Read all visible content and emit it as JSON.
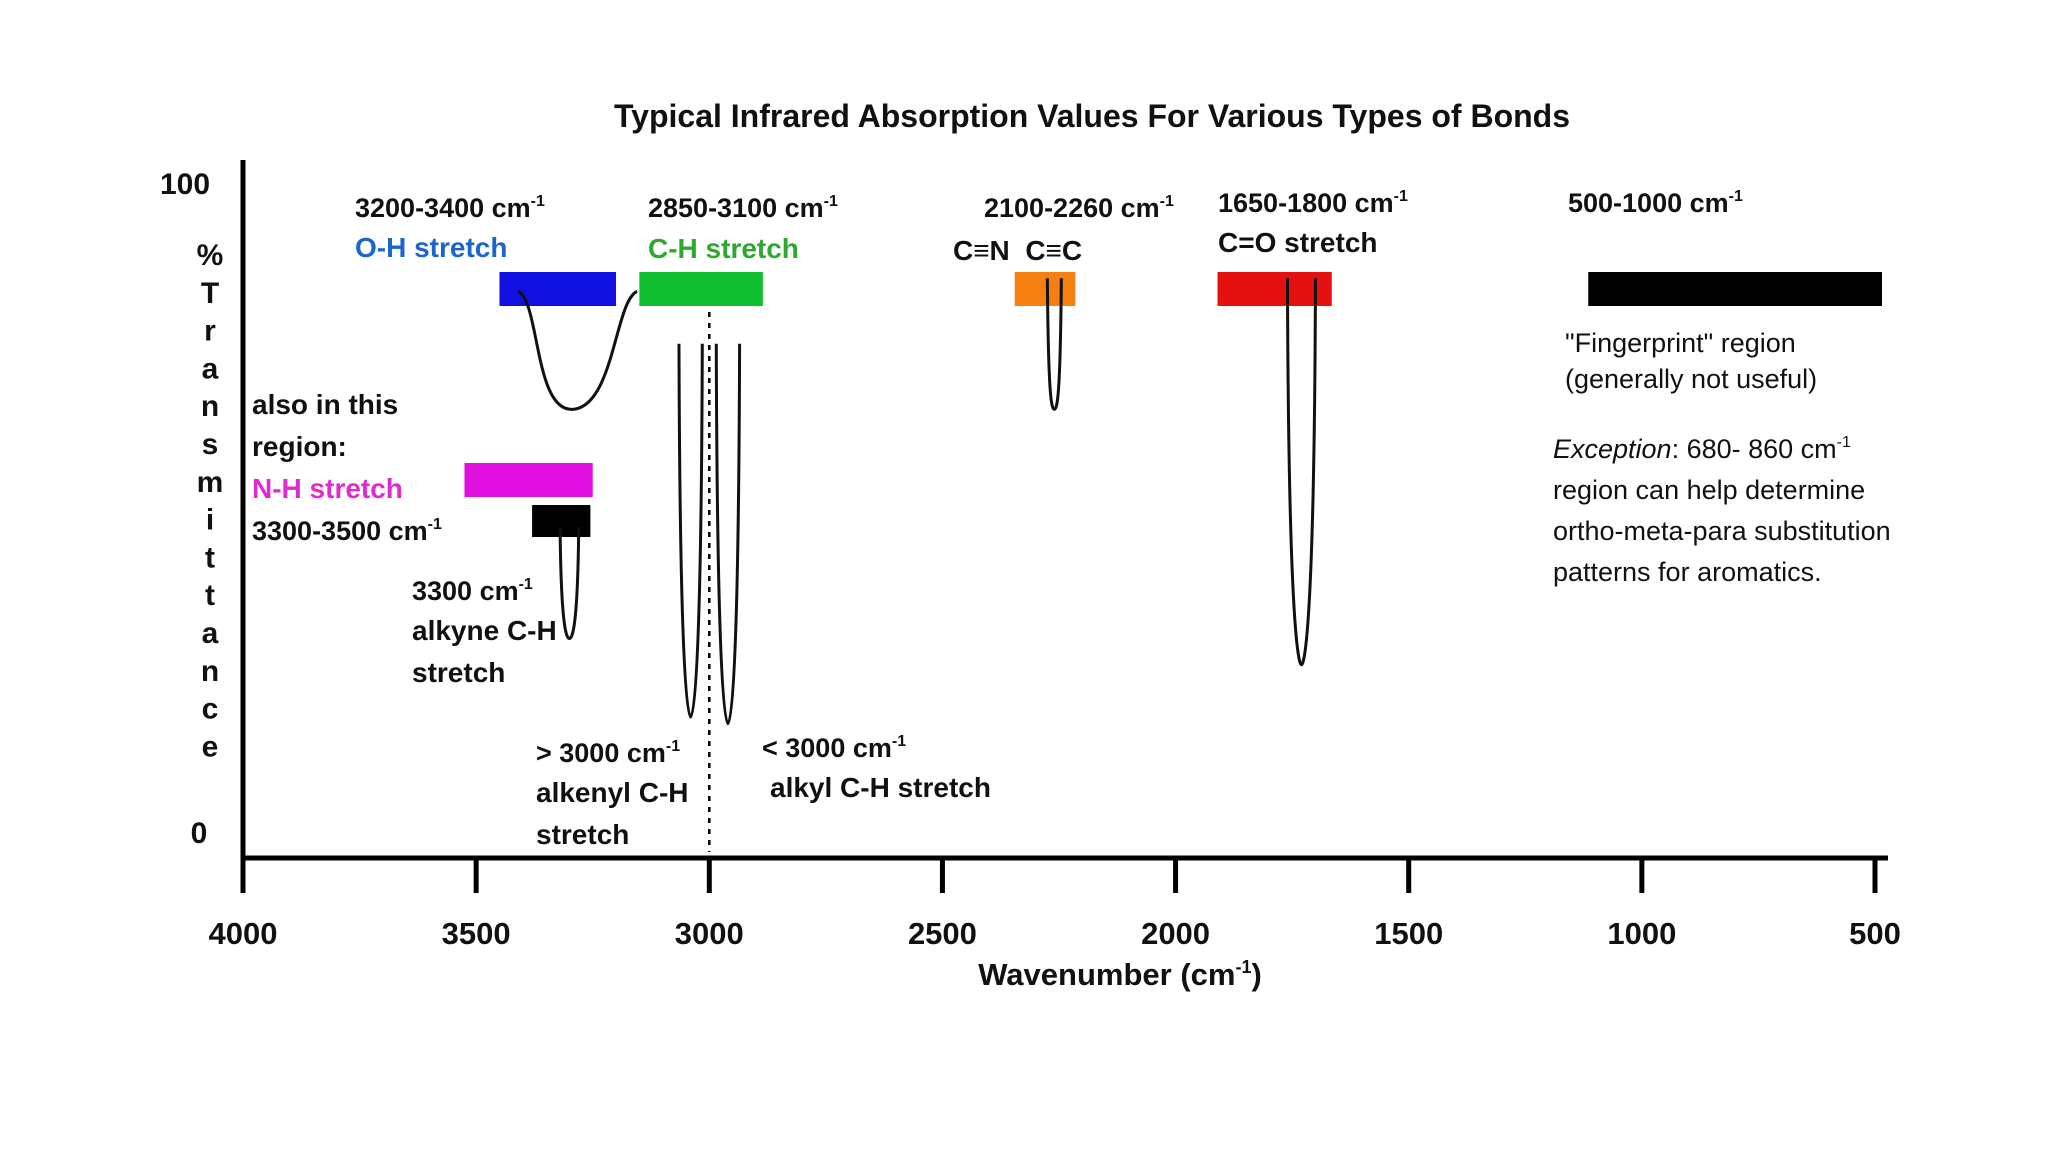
{
  "chart_data": {
    "type": "line",
    "title": "Typical Infrared Absorption Values For Various Types of Bonds",
    "xlabel": "Wavenumber (cm-1)",
    "xlabel_main": "Wavenumber (cm",
    "xlabel_sup": "-1",
    "xlabel_tail": ")",
    "ylabel": "% Transmittance",
    "xlim": [
      4000,
      500
    ],
    "ylim": [
      0,
      100
    ],
    "x_ticks": [
      4000,
      3500,
      3000,
      2500,
      2000,
      1500,
      1000,
      500
    ],
    "x_tick_labels": [
      "4000",
      "3500",
      "3000",
      "2500",
      "2000",
      "1500",
      "1000",
      "500"
    ],
    "y_tick_labels": [
      "100",
      "0"
    ],
    "grid": false,
    "legend": "none",
    "divider": {
      "x": 3000,
      "style": "dotted"
    },
    "bands": [
      {
        "key": "oh",
        "range_label": "3200-3400 cm",
        "name": "O-H stretch",
        "color": "#1010e0",
        "x0": 3450,
        "x1": 3200
      },
      {
        "key": "ch",
        "range_label": "2850-3100 cm",
        "name": "C-H stretch",
        "color": "#10c030",
        "x0": 3150,
        "x1": 2885
      },
      {
        "key": "triple",
        "range_label": "2100-2260 cm",
        "name": "C≡N  C≡C",
        "color": "#f57f10",
        "x0": 2345,
        "x1": 2215
      },
      {
        "key": "co",
        "range_label": "1650-1800 cm",
        "name": "C=O stretch",
        "color": "#e51010",
        "x0": 1910,
        "x1": 1665
      },
      {
        "key": "fp",
        "range_label": "500-1000 cm",
        "name": "",
        "color": "#000000",
        "x0": 1115,
        "x1": 485
      },
      {
        "key": "nh_magenta",
        "range_label": "",
        "name": "",
        "color": "#e010e0",
        "x0": 3525,
        "x1": 3250
      },
      {
        "key": "nh_black",
        "range_label": "",
        "name": "",
        "color": "#000000",
        "x0": 3380,
        "x1": 3255
      }
    ],
    "peaks": [
      {
        "label": "O-H",
        "x_left": 3410,
        "x_center": 3290,
        "x_right": 3155,
        "t_top": 83,
        "t_min": 65,
        "shape": "broad"
      },
      {
        "label": "alkyne C-H",
        "x_left": 3320,
        "x_center": 3300,
        "x_right": 3280,
        "t_top": 47,
        "t_min": 30,
        "shape": "sharp"
      },
      {
        "label": "alkenyl C-H",
        "x_left": 3065,
        "x_center": 3040,
        "x_right": 3015,
        "t_top": 75,
        "t_min": 18,
        "shape": "sharp"
      },
      {
        "label": "alkyl C-H",
        "x_left": 2985,
        "x_center": 2960,
        "x_right": 2935,
        "t_top": 75,
        "t_min": 17,
        "shape": "sharp"
      },
      {
        "label": "C≡N / C≡C",
        "x_left": 2275,
        "x_center": 2260,
        "x_right": 2245,
        "t_top": 85,
        "t_min": 65,
        "shape": "sharp"
      },
      {
        "label": "C=O",
        "x_left": 1760,
        "x_center": 1730,
        "x_right": 1700,
        "t_top": 85,
        "t_min": 26,
        "shape": "sharp"
      }
    ],
    "annotations": {
      "also_line1": "also in this",
      "also_line2": "region:",
      "nh_name": "N-H stretch",
      "nh_range": "3300-3500 cm",
      "alkyne_range": "3300 cm",
      "alkyne_line2": "alkyne C-H",
      "alkyne_line3": "stretch",
      "alkenyl_range": "> 3000 cm",
      "alkenyl_line2": "alkenyl C-H",
      "alkenyl_line3": "stretch",
      "alkyl_range": "< 3000 cm",
      "alkyl_line2": "alkyl C-H stretch",
      "fingerprint_line1": "\"Fingerprint\" region",
      "fingerprint_line2": "(generally not useful)",
      "exception_word": "Exception",
      "exception_line1_rest": ": 680- 860 cm",
      "exception_line2": "region can help determine",
      "exception_line3": "ortho-meta-para substitution",
      "exception_line4": "patterns for aromatics.",
      "sup": "-1"
    }
  }
}
